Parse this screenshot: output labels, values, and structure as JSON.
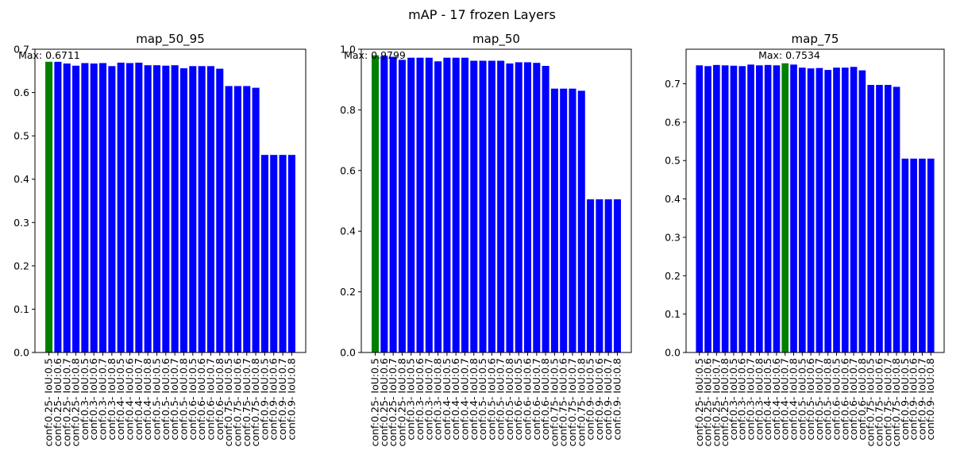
{
  "figure": {
    "suptitle": "mAP - 17 frozen Layers"
  },
  "colors": {
    "bar": "#0000ff",
    "max_bar": "#008000",
    "axis": "#000000",
    "background": "#ffffff"
  },
  "chart_data": [
    {
      "type": "bar",
      "title": "map_50_95",
      "categories": [
        "conf:0.25- IoU:0.5",
        "conf:0.25- IoU:0.6",
        "conf:0.25- IoU:0.7",
        "conf:0.25- IoU:0.8",
        "conf:0.3- IoU:0.5",
        "conf:0.3- IoU:0.6",
        "conf:0.3- IoU:0.7",
        "conf:0.3- IoU:0.8",
        "conf:0.4- IoU:0.5",
        "conf:0.4- IoU:0.6",
        "conf:0.4- IoU:0.7",
        "conf:0.4- IoU:0.8",
        "conf:0.5- IoU:0.5",
        "conf:0.5- IoU:0.6",
        "conf:0.5- IoU:0.7",
        "conf:0.5- IoU:0.8",
        "conf:0.6- IoU:0.5",
        "conf:0.6- IoU:0.6",
        "conf:0.6- IoU:0.7",
        "conf:0.6- IoU:0.8",
        "conf:0.75- IoU:0.5",
        "conf:0.75- IoU:0.6",
        "conf:0.75- IoU:0.7",
        "conf:0.75- IoU:0.8",
        "conf:0.9- IoU:0.5",
        "conf:0.9- IoU:0.6",
        "conf:0.9- IoU:0.7",
        "conf:0.9- IoU:0.8"
      ],
      "values": [
        0.6711,
        0.671,
        0.667,
        0.662,
        0.668,
        0.667,
        0.668,
        0.661,
        0.669,
        0.668,
        0.669,
        0.663,
        0.663,
        0.662,
        0.663,
        0.656,
        0.661,
        0.661,
        0.661,
        0.655,
        0.615,
        0.615,
        0.615,
        0.611,
        0.456,
        0.456,
        0.456,
        0.456
      ],
      "max_index": 0,
      "max_label": "Max: 0.6711",
      "ylim": [
        0,
        0.7
      ],
      "yticks": [
        "0.0",
        "0.1",
        "0.2",
        "0.3",
        "0.4",
        "0.5",
        "0.6",
        "0.7"
      ]
    },
    {
      "type": "bar",
      "title": "map_50",
      "categories": [
        "conf:0.25- IoU:0.5",
        "conf:0.25- IoU:0.6",
        "conf:0.25- IoU:0.7",
        "conf:0.25- IoU:0.8",
        "conf:0.3- IoU:0.5",
        "conf:0.3- IoU:0.6",
        "conf:0.3- IoU:0.7",
        "conf:0.3- IoU:0.8",
        "conf:0.4- IoU:0.5",
        "conf:0.4- IoU:0.6",
        "conf:0.4- IoU:0.7",
        "conf:0.4- IoU:0.8",
        "conf:0.5- IoU:0.5",
        "conf:0.5- IoU:0.6",
        "conf:0.5- IoU:0.7",
        "conf:0.5- IoU:0.8",
        "conf:0.6- IoU:0.5",
        "conf:0.6- IoU:0.6",
        "conf:0.6- IoU:0.7",
        "conf:0.6- IoU:0.8",
        "conf:0.75- IoU:0.5",
        "conf:0.75- IoU:0.6",
        "conf:0.75- IoU:0.7",
        "conf:0.75- IoU:0.8",
        "conf:0.9- IoU:0.5",
        "conf:0.9- IoU:0.6",
        "conf:0.9- IoU:0.7",
        "conf:0.9- IoU:0.8"
      ],
      "values": [
        0.9799,
        0.978,
        0.975,
        0.965,
        0.972,
        0.972,
        0.972,
        0.96,
        0.972,
        0.972,
        0.972,
        0.962,
        0.962,
        0.962,
        0.962,
        0.953,
        0.957,
        0.957,
        0.955,
        0.945,
        0.87,
        0.87,
        0.87,
        0.863,
        0.505,
        0.505,
        0.505,
        0.505
      ],
      "max_index": 0,
      "max_label": "Max: 0.9799",
      "ylim": [
        0,
        1.0
      ],
      "yticks": [
        "0.0",
        "0.2",
        "0.4",
        "0.6",
        "0.8",
        "1.0"
      ]
    },
    {
      "type": "bar",
      "title": "map_75",
      "categories": [
        "conf:0.25- IoU:0.5",
        "conf:0.25- IoU:0.6",
        "conf:0.25- IoU:0.7",
        "conf:0.25- IoU:0.8",
        "conf:0.3- IoU:0.5",
        "conf:0.3- IoU:0.6",
        "conf:0.3- IoU:0.7",
        "conf:0.3- IoU:0.8",
        "conf:0.4- IoU:0.5",
        "conf:0.4- IoU:0.6",
        "conf:0.4- IoU:0.7",
        "conf:0.4- IoU:0.8",
        "conf:0.5- IoU:0.5",
        "conf:0.5- IoU:0.6",
        "conf:0.5- IoU:0.7",
        "conf:0.5- IoU:0.8",
        "conf:0.6- IoU:0.5",
        "conf:0.6- IoU:0.6",
        "conf:0.6- IoU:0.7",
        "conf:0.6- IoU:0.8",
        "conf:0.75- IoU:0.5",
        "conf:0.75- IoU:0.6",
        "conf:0.75- IoU:0.7",
        "conf:0.75- IoU:0.8",
        "conf:0.9- IoU:0.5",
        "conf:0.9- IoU:0.6",
        "conf:0.9- IoU:0.7",
        "conf:0.9- IoU:0.8"
      ],
      "values": [
        0.748,
        0.746,
        0.749,
        0.748,
        0.747,
        0.746,
        0.75,
        0.748,
        0.749,
        0.748,
        0.7534,
        0.75,
        0.742,
        0.74,
        0.741,
        0.736,
        0.742,
        0.742,
        0.744,
        0.735,
        0.697,
        0.697,
        0.697,
        0.692,
        0.505,
        0.505,
        0.505,
        0.505
      ],
      "max_index": 10,
      "max_label": "Max: 0.7534",
      "ylim": [
        0,
        0.79
      ],
      "yticks": [
        "0.0",
        "0.1",
        "0.2",
        "0.3",
        "0.4",
        "0.5",
        "0.6",
        "0.7"
      ]
    }
  ]
}
